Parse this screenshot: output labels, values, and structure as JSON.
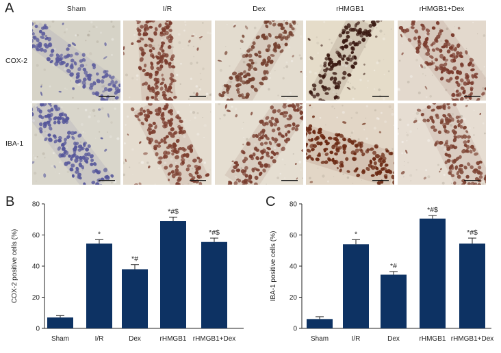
{
  "panel_a": {
    "label": "A",
    "columns": [
      "Sham",
      "I/R",
      "Dex",
      "rHMGB1",
      "rHMGB1+Dex"
    ],
    "rows": [
      "COX-2",
      "IBA-1"
    ],
    "nucleus_colors": [
      [
        "#5b5b9c",
        "#7a3c2e",
        "#74402f",
        "#3a1a12",
        "#793a2c"
      ],
      [
        "#55569a",
        "#7d3f30",
        "#7a3f30",
        "#6a2812",
        "#7c4232"
      ]
    ],
    "background_colors": [
      [
        "#d6d3c7",
        "#e2d9cb",
        "#e3dccf",
        "#e5dcc9",
        "#e3d9cd"
      ],
      [
        "#d9d6cb",
        "#e4dccf",
        "#e5ded1",
        "#e2d6c6",
        "#e6ddd2"
      ]
    ]
  },
  "chart_data": [
    {
      "panel_label": "B",
      "type": "bar",
      "categories": [
        "Sham",
        "I/R",
        "Dex",
        "rHMGB1",
        "rHMGB1+Dex"
      ],
      "values": [
        7,
        54.5,
        38,
        69,
        55.5
      ],
      "error": [
        1.2,
        2.5,
        3,
        2.5,
        2.5
      ],
      "annotations": [
        "",
        "*",
        "*#",
        "*#$",
        "*#$"
      ],
      "xlabel": "",
      "ylabel": "COX-2 positive cells (%)",
      "ylim": [
        0,
        80
      ],
      "yticks": [
        0,
        20,
        40,
        60,
        80
      ],
      "grid": false,
      "bar_color": "#0d3263"
    },
    {
      "panel_label": "C",
      "type": "bar",
      "categories": [
        "Sham",
        "I/R",
        "Dex",
        "rHMGB1",
        "rHMGB1+Dex"
      ],
      "values": [
        6,
        54,
        34.5,
        70.5,
        54.5
      ],
      "error": [
        1.5,
        3,
        2,
        2,
        3.5
      ],
      "annotations": [
        "",
        "*",
        "*#",
        "*#$",
        "*#$"
      ],
      "xlabel": "",
      "ylabel": "IBA-1 positive cells (%)",
      "ylim": [
        0,
        80
      ],
      "yticks": [
        0,
        20,
        40,
        60,
        80
      ],
      "grid": false,
      "bar_color": "#0d3263"
    }
  ]
}
